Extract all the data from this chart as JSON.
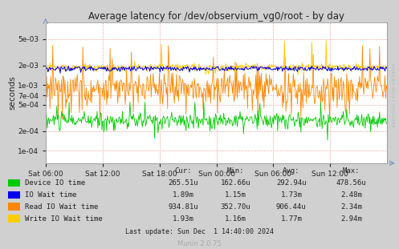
{
  "title": "Average latency for /dev/observium_vg0/root - by day",
  "ylabel": "seconds",
  "background_color": "#d0d0d0",
  "plot_bg_color": "#ffffff",
  "grid_color": "#e88080",
  "x_tick_labels": [
    "Sat 06:00",
    "Sat 12:00",
    "Sat 18:00",
    "Sun 00:00",
    "Sun 06:00",
    "Sun 12:00"
  ],
  "y_ticks": [
    0.0001,
    0.0002,
    0.0005,
    0.0007,
    0.001,
    0.002,
    0.005
  ],
  "ylim": [
    6.5e-05,
    0.009
  ],
  "legend": [
    {
      "label": "Device IO time",
      "color": "#00cc00"
    },
    {
      "label": "IO Wait time",
      "color": "#0000ee"
    },
    {
      "label": "Read IO Wait time",
      "color": "#ff8800"
    },
    {
      "label": "Write IO Wait time",
      "color": "#ffcc00"
    }
  ],
  "stats_header": [
    "Cur:",
    "Min:",
    "Avg:",
    "Max:"
  ],
  "stats": [
    [
      "265.51u",
      "162.66u",
      "292.94u",
      "478.56u"
    ],
    [
      "1.89m",
      "1.15m",
      "1.73m",
      "2.48m"
    ],
    [
      "934.81u",
      "352.70u",
      "906.44u",
      "2.34m"
    ],
    [
      "1.93m",
      "1.16m",
      "1.77m",
      "2.94m"
    ]
  ],
  "last_update": "Last update: Sun Dec  1 14:40:00 2024",
  "munin_version": "Munin 2.0.75",
  "rrdtool_label": "RRDTOOL / TOBI OETIKER",
  "n_points": 500,
  "seed": 42,
  "green_mean": 0.00029,
  "green_std": 4.5e-05,
  "blue_mean": 0.00178,
  "blue_std": 8e-05,
  "orange_mean": 0.00092,
  "orange_std": 0.00028,
  "yellow_mean": 0.00185,
  "yellow_std": 0.00013
}
